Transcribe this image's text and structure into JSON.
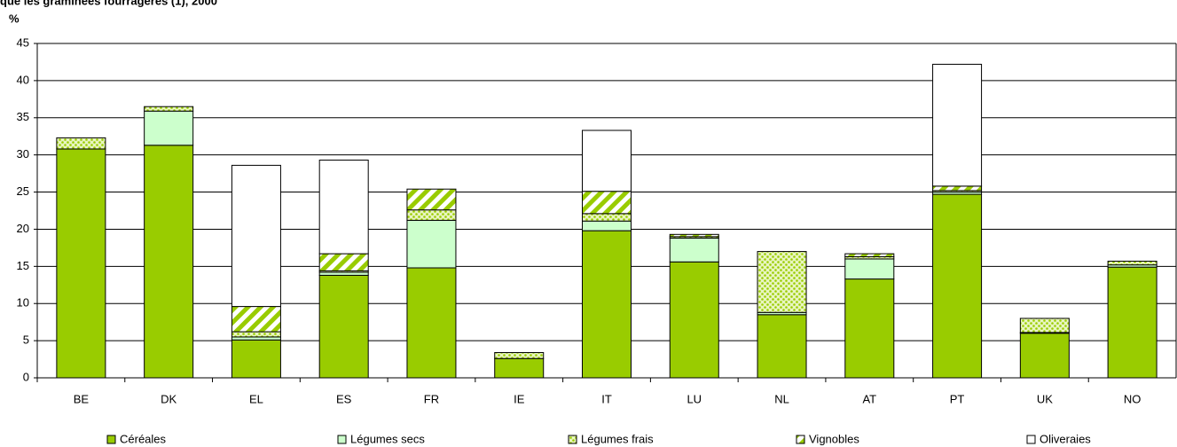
{
  "chart_data": {
    "type": "stacked_bar",
    "title": "que les graminées fourragères  (1), 2000",
    "y_label": "%",
    "categories": [
      "BE",
      "DK",
      "EL",
      "ES",
      "FR",
      "IE",
      "IT",
      "LU",
      "NL",
      "AT",
      "PT",
      "UK",
      "NO"
    ],
    "series": [
      {
        "name": "Céréales",
        "color": "#99cc00",
        "pattern": "solid",
        "values": [
          30.8,
          31.3,
          5.1,
          13.8,
          14.8,
          2.6,
          19.8,
          15.6,
          8.5,
          13.3,
          24.7,
          6.0,
          14.9
        ]
      },
      {
        "name": "Légumes secs",
        "color": "#ccffcc",
        "pattern": "solid",
        "values": [
          0,
          4.6,
          0.4,
          0.4,
          6.4,
          0,
          1.3,
          3.2,
          0.3,
          2.7,
          0.3,
          0.1,
          0.3
        ]
      },
      {
        "name": "Légumes frais",
        "color": "#99cc00",
        "pattern": "dots",
        "values": [
          1.5,
          0.6,
          0.7,
          0.2,
          1.4,
          0.8,
          1.0,
          0.2,
          8.2,
          0.3,
          0.2,
          1.9,
          0.5
        ]
      },
      {
        "name": "Vignobles",
        "color": "#99cc00",
        "pattern": "stripes",
        "values": [
          0,
          0,
          3.4,
          2.3,
          2.8,
          0,
          3.0,
          0.3,
          0,
          0.4,
          0.6,
          0,
          0
        ]
      },
      {
        "name": "Oliveraies",
        "color": "#ffffff",
        "pattern": "solid",
        "values": [
          0,
          0,
          19.0,
          12.6,
          0,
          0,
          8.2,
          0,
          0,
          0,
          16.4,
          0,
          0
        ]
      }
    ],
    "ylim": [
      0,
      45
    ],
    "yticks": [
      0,
      5,
      10,
      15,
      20,
      25,
      30,
      35,
      40,
      45
    ],
    "grid": true,
    "legend": "bottom"
  }
}
